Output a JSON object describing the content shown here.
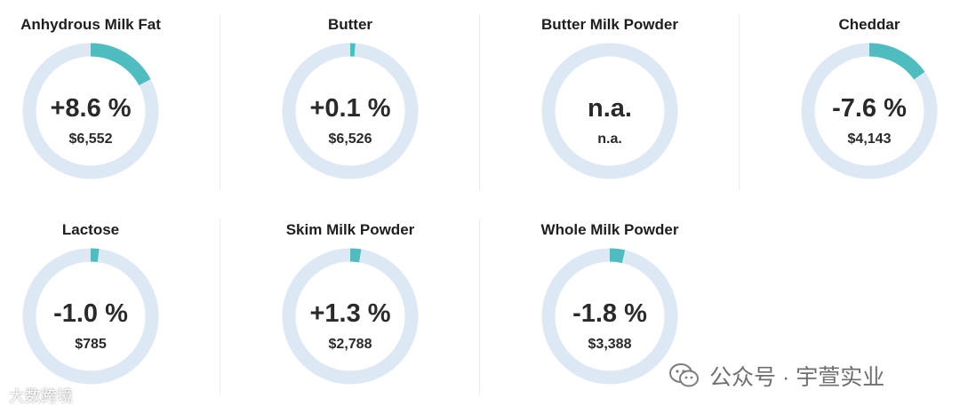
{
  "colors": {
    "track": "#dde8f5",
    "positive": "#4fbcc0",
    "negative": "#4fbcc0",
    "text": "#222222"
  },
  "chart_data": [
    {
      "type": "donut",
      "title": "Anhydrous Milk Fat",
      "change_label": "+8.6 %",
      "price_label": "$6,552",
      "change_pct": 8.6
    },
    {
      "type": "donut",
      "title": "Butter",
      "change_label": "+0.1 %",
      "price_label": "$6,526",
      "change_pct": 0.1
    },
    {
      "type": "donut",
      "title": "Butter Milk Powder",
      "change_label": "n.a.",
      "price_label": "n.a.",
      "change_pct": null
    },
    {
      "type": "donut",
      "title": "Cheddar",
      "change_label": "-7.6 %",
      "price_label": "$4,143",
      "change_pct": -7.6
    },
    {
      "type": "donut",
      "title": "Lactose",
      "change_label": "-1.0 %",
      "price_label": "$785",
      "change_pct": -1.0
    },
    {
      "type": "donut",
      "title": "Skim Milk Powder",
      "change_label": "+1.3 %",
      "price_label": "$2,788",
      "change_pct": 1.3
    },
    {
      "type": "donut",
      "title": "Whole Milk Powder",
      "change_label": "-1.8 %",
      "price_label": "$3,388",
      "change_pct": -1.8
    }
  ],
  "watermarks": {
    "left": "大数跨境",
    "right": "公众号 · 宇萱实业"
  }
}
